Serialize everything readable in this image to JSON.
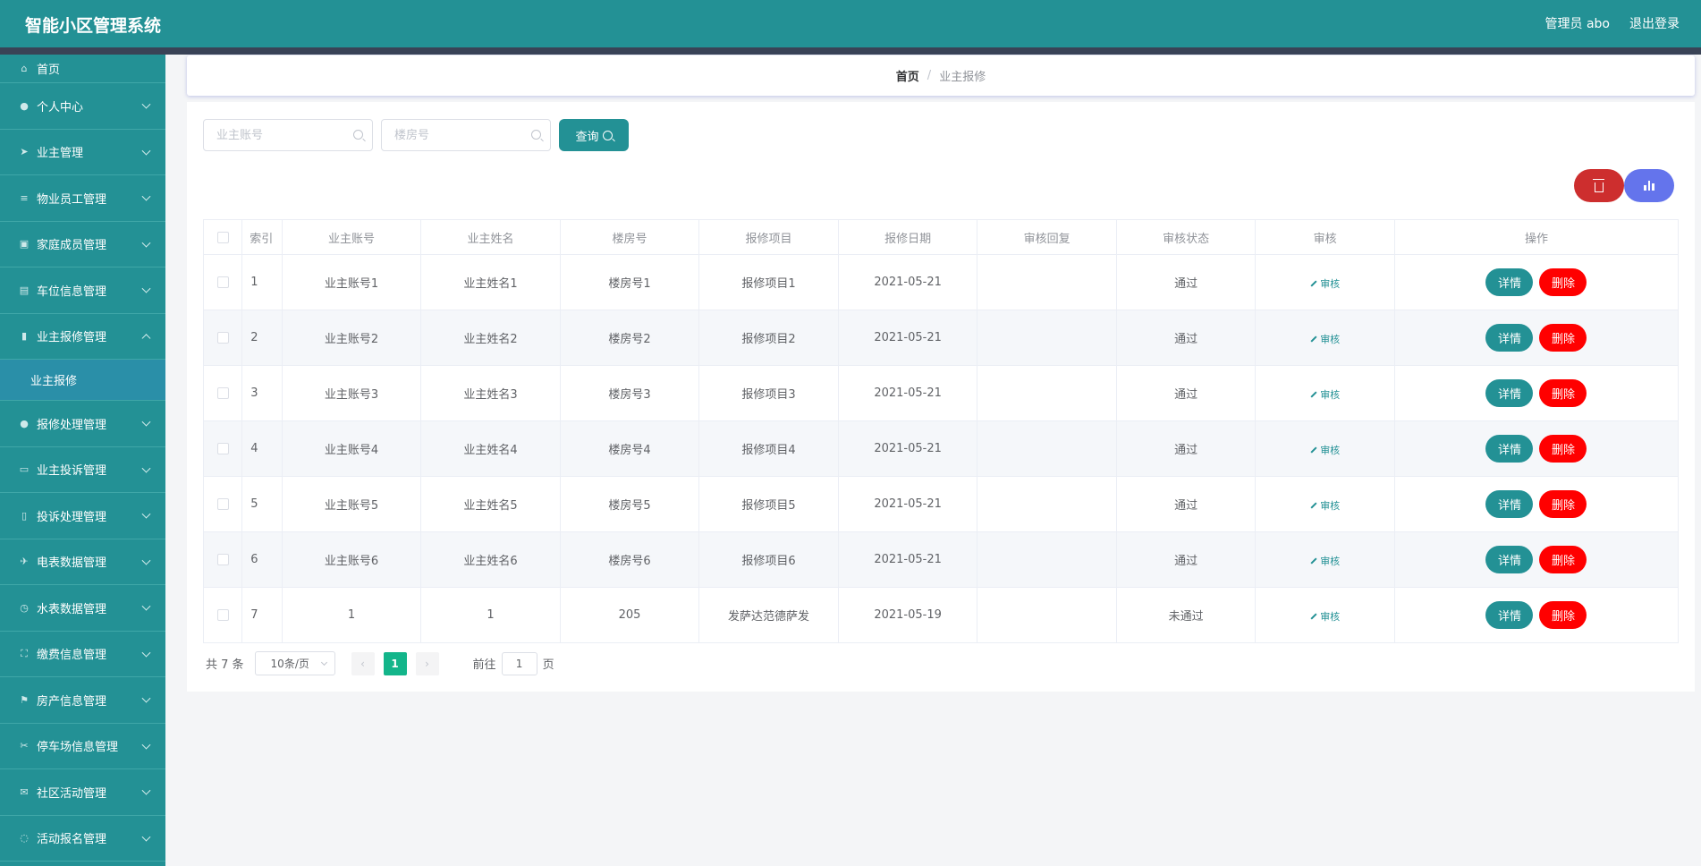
{
  "header": {
    "title": "智能小区管理系统",
    "user": "管理员 abo",
    "logout": "退出登录"
  },
  "sidebar": {
    "items": [
      {
        "label": "首页",
        "icon": "home-icon"
      },
      {
        "label": "个人中心",
        "icon": "user-icon"
      },
      {
        "label": "业主管理",
        "icon": "send-icon"
      },
      {
        "label": "物业员工管理",
        "icon": "menu-icon"
      },
      {
        "label": "家庭成员管理",
        "icon": "picture-icon"
      },
      {
        "label": "车位信息管理",
        "icon": "printer-icon"
      },
      {
        "label": "业主报修管理",
        "icon": "chart-icon"
      },
      {
        "label": "报修处理管理",
        "icon": "user-solid-icon"
      },
      {
        "label": "业主投诉管理",
        "icon": "chat-icon"
      },
      {
        "label": "投诉处理管理",
        "icon": "mobile-icon"
      },
      {
        "label": "电表数据管理",
        "icon": "plane-icon"
      },
      {
        "label": "水表数据管理",
        "icon": "timer-icon"
      },
      {
        "label": "缴费信息管理",
        "icon": "fullscreen-icon"
      },
      {
        "label": "房产信息管理",
        "icon": "flag-icon"
      },
      {
        "label": "停车场信息管理",
        "icon": "ticket-icon"
      },
      {
        "label": "社区活动管理",
        "icon": "message-icon"
      },
      {
        "label": "活动报名管理",
        "icon": "loading-icon"
      }
    ],
    "submenu": {
      "label": "业主报修"
    }
  },
  "breadcrumb": {
    "home": "首页",
    "separator": "/",
    "current": "业主报修"
  },
  "search": {
    "account_placeholder": "业主账号",
    "room_placeholder": "楼房号",
    "query_label": "查询"
  },
  "table": {
    "headers": [
      "索引",
      "业主账号",
      "业主姓名",
      "楼房号",
      "报修项目",
      "报修日期",
      "审核回复",
      "审核状态",
      "审核",
      "操作"
    ],
    "rows": [
      {
        "idx": "1",
        "account": "业主账号1",
        "name": "业主姓名1",
        "room": "楼房号1",
        "item": "报修项目1",
        "date": "2021-05-21",
        "reply": "",
        "status": "通过"
      },
      {
        "idx": "2",
        "account": "业主账号2",
        "name": "业主姓名2",
        "room": "楼房号2",
        "item": "报修项目2",
        "date": "2021-05-21",
        "reply": "",
        "status": "通过"
      },
      {
        "idx": "3",
        "account": "业主账号3",
        "name": "业主姓名3",
        "room": "楼房号3",
        "item": "报修项目3",
        "date": "2021-05-21",
        "reply": "",
        "status": "通过"
      },
      {
        "idx": "4",
        "account": "业主账号4",
        "name": "业主姓名4",
        "room": "楼房号4",
        "item": "报修项目4",
        "date": "2021-05-21",
        "reply": "",
        "status": "通过"
      },
      {
        "idx": "5",
        "account": "业主账号5",
        "name": "业主姓名5",
        "room": "楼房号5",
        "item": "报修项目5",
        "date": "2021-05-21",
        "reply": "",
        "status": "通过"
      },
      {
        "idx": "6",
        "account": "业主账号6",
        "name": "业主姓名6",
        "room": "楼房号6",
        "item": "报修项目6",
        "date": "2021-05-21",
        "reply": "",
        "status": "通过"
      },
      {
        "idx": "7",
        "account": "1",
        "name": "1",
        "room": "205",
        "item": "发萨达范德萨发",
        "date": "2021-05-19",
        "reply": "",
        "status": "未通过"
      }
    ],
    "audit_label": "审核",
    "detail_label": "详情",
    "delete_label": "删除"
  },
  "pagination": {
    "total": "共 7 条",
    "page_size": "10条/页",
    "prev": "‹",
    "current_page": "1",
    "next": "›",
    "goto_prefix": "前往",
    "goto_value": "1",
    "goto_suffix": "页"
  },
  "colors": {
    "primary": "#239195",
    "danger": "#ff0000",
    "batch_delete": "#cd2e2e",
    "stats": "#6474ec",
    "page_active": "#13b58a"
  }
}
